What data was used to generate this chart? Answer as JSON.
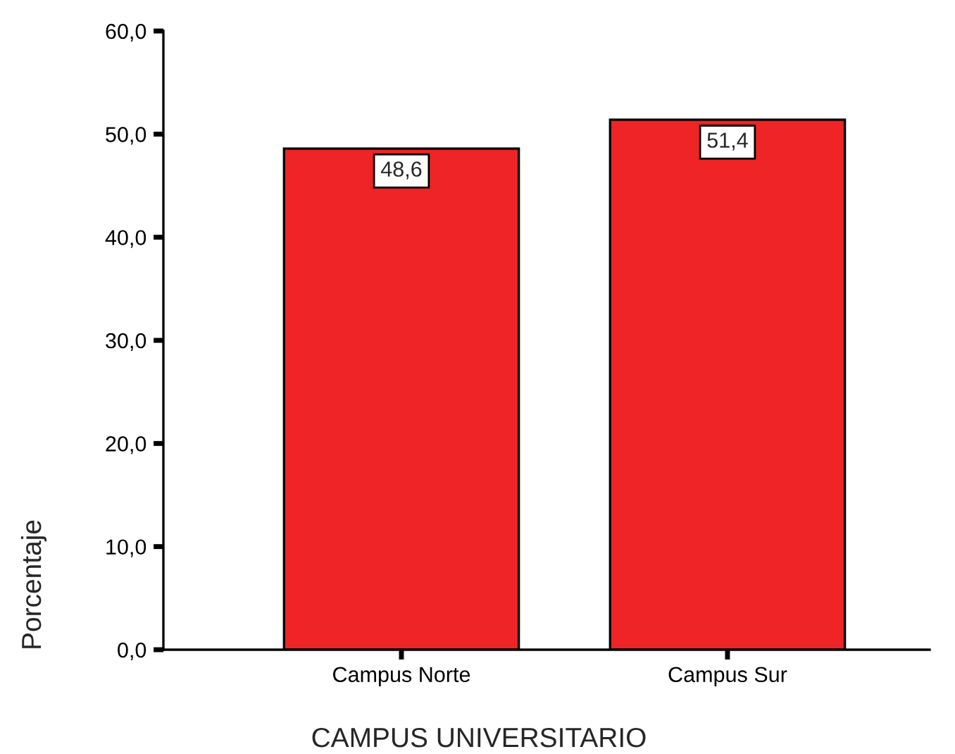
{
  "chart_data": {
    "type": "bar",
    "xlabel": "CAMPUS UNIVERSITARIO",
    "ylabel": "Porcentaje",
    "categories": [
      "Campus Norte",
      "Campus Sur"
    ],
    "values": [
      48.6,
      51.4
    ],
    "color": "#ee2426",
    "value_labels": [
      "48,6",
      "51,4"
    ],
    "ylim": [
      0,
      60
    ],
    "yticks": [
      {
        "value": 0,
        "label": "0,0"
      },
      {
        "value": 10,
        "label": "10,0"
      },
      {
        "value": 20,
        "label": "20,0"
      },
      {
        "value": 30,
        "label": "30,0"
      },
      {
        "value": 40,
        "label": "40,0"
      },
      {
        "value": 50,
        "label": "50,0"
      },
      {
        "value": 60,
        "label": "60,0"
      }
    ],
    "grid": false,
    "legend": false
  }
}
